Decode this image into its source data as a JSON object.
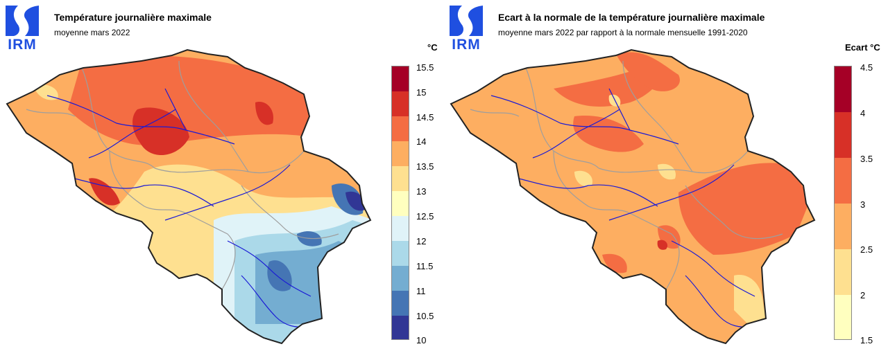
{
  "left_panel": {
    "logo_text": "IRM",
    "title": "Température journalière maximale",
    "subtitle": "moyenne mars 2022",
    "legend_unit": "°C",
    "legend_ticks": [
      "15.5",
      "15",
      "14.5",
      "14",
      "13.5",
      "13",
      "12.5",
      "12",
      "11.5",
      "11",
      "10.5",
      "10"
    ],
    "legend_colors": [
      "#a50026",
      "#d73027",
      "#f46d43",
      "#fdae61",
      "#fee090",
      "#ffffbf",
      "#e0f3f8",
      "#abd9e9",
      "#74add1",
      "#4575b4",
      "#313695"
    ]
  },
  "right_panel": {
    "logo_text": "IRM",
    "title": "Ecart à la normale de la température journalière maximale",
    "subtitle": "moyenne mars 2022 par rapport à la normale mensuelle 1991-2020",
    "legend_unit": "Ecart °C",
    "legend_ticks": [
      "4.5",
      "4",
      "3.5",
      "3",
      "2.5",
      "2",
      "1.5"
    ],
    "legend_colors": [
      "#a50026",
      "#d73027",
      "#f46d43",
      "#fdae61",
      "#fee090",
      "#ffffbf"
    ]
  },
  "colors": {
    "logo_blue": "#1f4fe0",
    "border": "#222222",
    "province_lines": "#9e9e9e",
    "rivers": "#1a1ad6"
  }
}
